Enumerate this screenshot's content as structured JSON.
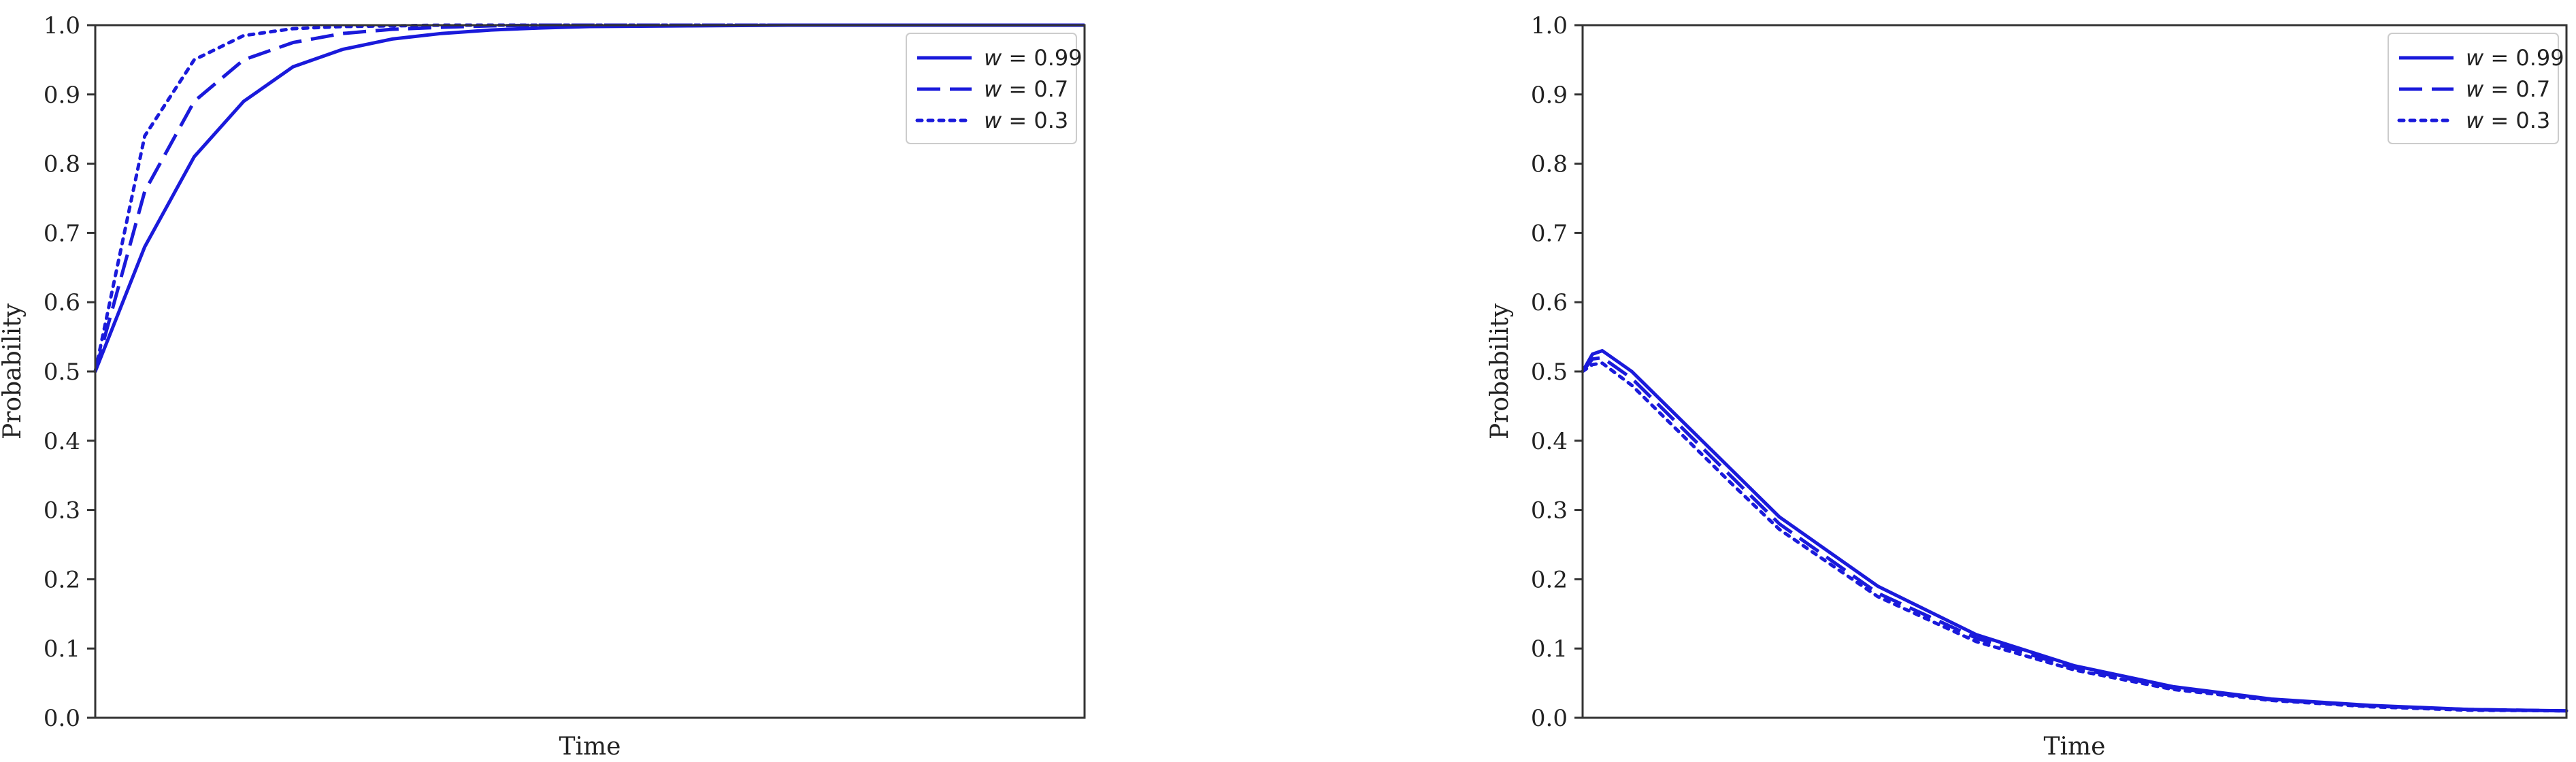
{
  "chart_data": [
    {
      "type": "line",
      "xlabel": "Time",
      "ylabel": "Probability",
      "ylim": [
        0,
        1
      ],
      "yticks": [
        "0.0",
        "0.1",
        "0.2",
        "0.3",
        "0.4",
        "0.5",
        "0.6",
        "0.7",
        "0.8",
        "0.9",
        "1.0"
      ],
      "xticks_shown": false,
      "legend_position": "top-right",
      "grid": false,
      "color": "#1a1adb",
      "series": [
        {
          "name": "w = 0.99",
          "legend_w": "w",
          "legend_value": " = 0.99",
          "style": "solid",
          "x": [
            0,
            0.05,
            0.1,
            0.15,
            0.2,
            0.25,
            0.3,
            0.35,
            0.4,
            0.45,
            0.5,
            0.6,
            0.7,
            0.8,
            0.9,
            1.0
          ],
          "y": [
            0.5,
            0.68,
            0.81,
            0.89,
            0.94,
            0.965,
            0.98,
            0.988,
            0.993,
            0.996,
            0.998,
            0.999,
            1.0,
            1.0,
            1.0,
            1.0
          ]
        },
        {
          "name": "w = 0.7",
          "legend_w": "w",
          "legend_value": " = 0.7",
          "style": "dashed",
          "x": [
            0,
            0.05,
            0.1,
            0.15,
            0.2,
            0.25,
            0.3,
            0.35,
            0.4,
            0.45,
            0.5,
            0.6,
            0.7,
            0.8,
            0.9,
            1.0
          ],
          "y": [
            0.5,
            0.76,
            0.89,
            0.95,
            0.975,
            0.988,
            0.994,
            0.997,
            0.999,
            1.0,
            1.0,
            1.0,
            1.0,
            1.0,
            1.0,
            1.0
          ]
        },
        {
          "name": "w = 0.3",
          "legend_w": "w",
          "legend_value": " = 0.3",
          "style": "dotted",
          "x": [
            0,
            0.05,
            0.1,
            0.15,
            0.2,
            0.25,
            0.3,
            0.35,
            0.4,
            0.45,
            0.5,
            0.6,
            0.7,
            0.8,
            0.9,
            1.0
          ],
          "y": [
            0.5,
            0.84,
            0.95,
            0.985,
            0.995,
            0.998,
            0.999,
            1.0,
            1.0,
            1.0,
            1.0,
            1.0,
            1.0,
            1.0,
            1.0,
            1.0
          ]
        }
      ]
    },
    {
      "type": "line",
      "xlabel": "Time",
      "ylabel": "Probability",
      "ylim": [
        0,
        1
      ],
      "yticks": [
        "0.0",
        "0.1",
        "0.2",
        "0.3",
        "0.4",
        "0.5",
        "0.6",
        "0.7",
        "0.8",
        "0.9",
        "1.0"
      ],
      "xticks_shown": false,
      "legend_position": "top-right",
      "grid": false,
      "color": "#1a1adb",
      "series": [
        {
          "name": "w = 0.99",
          "legend_w": "w",
          "legend_value": " = 0.99",
          "style": "solid",
          "x": [
            0,
            0.01,
            0.02,
            0.05,
            0.1,
            0.15,
            0.2,
            0.3,
            0.4,
            0.5,
            0.6,
            0.7,
            0.8,
            0.9,
            1.0
          ],
          "y": [
            0.5,
            0.525,
            0.53,
            0.5,
            0.43,
            0.36,
            0.29,
            0.19,
            0.12,
            0.075,
            0.045,
            0.027,
            0.018,
            0.012,
            0.01
          ]
        },
        {
          "name": "w = 0.7",
          "legend_w": "w",
          "legend_value": " = 0.7",
          "style": "dashed",
          "x": [
            0,
            0.01,
            0.02,
            0.05,
            0.1,
            0.15,
            0.2,
            0.3,
            0.4,
            0.5,
            0.6,
            0.7,
            0.8,
            0.9,
            1.0
          ],
          "y": [
            0.5,
            0.518,
            0.52,
            0.49,
            0.42,
            0.35,
            0.28,
            0.18,
            0.115,
            0.072,
            0.043,
            0.026,
            0.017,
            0.012,
            0.01
          ]
        },
        {
          "name": "w = 0.3",
          "legend_w": "w",
          "legend_value": " = 0.3",
          "style": "dotted",
          "x": [
            0,
            0.01,
            0.02,
            0.05,
            0.1,
            0.15,
            0.2,
            0.3,
            0.4,
            0.5,
            0.6,
            0.7,
            0.8,
            0.9,
            1.0
          ],
          "y": [
            0.5,
            0.51,
            0.512,
            0.48,
            0.41,
            0.34,
            0.272,
            0.175,
            0.11,
            0.069,
            0.041,
            0.025,
            0.016,
            0.011,
            0.01
          ]
        }
      ]
    }
  ]
}
